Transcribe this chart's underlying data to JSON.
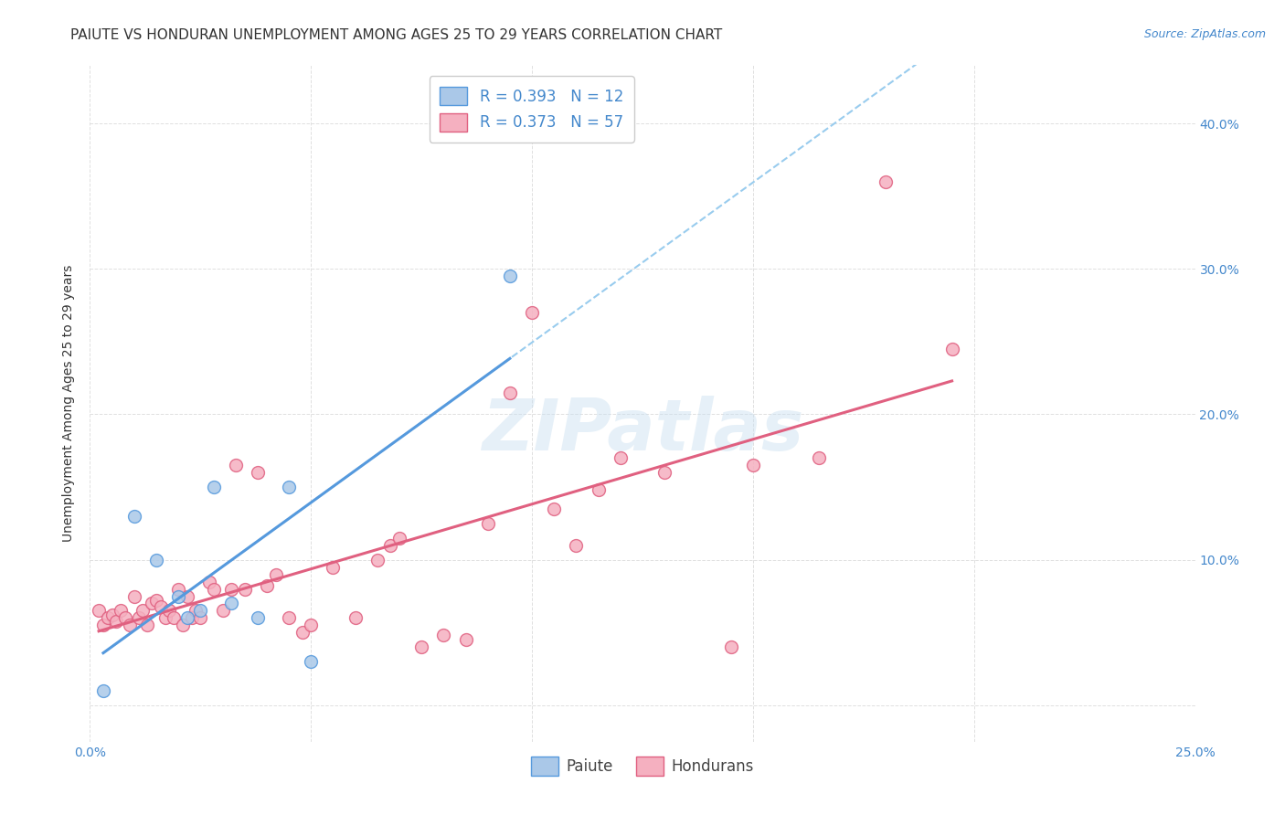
{
  "title": "PAIUTE VS HONDURAN UNEMPLOYMENT AMONG AGES 25 TO 29 YEARS CORRELATION CHART",
  "source": "Source: ZipAtlas.com",
  "ylabel": "Unemployment Among Ages 25 to 29 years",
  "xlim": [
    0.0,
    0.25
  ],
  "ylim": [
    -0.025,
    0.44
  ],
  "background_color": "#ffffff",
  "grid_color": "#e0e0e0",
  "paiute_x": [
    0.003,
    0.01,
    0.015,
    0.02,
    0.022,
    0.025,
    0.028,
    0.032,
    0.038,
    0.045,
    0.05,
    0.095
  ],
  "paiute_y": [
    0.01,
    0.13,
    0.1,
    0.075,
    0.06,
    0.065,
    0.15,
    0.07,
    0.06,
    0.15,
    0.03,
    0.295
  ],
  "honduran_x": [
    0.002,
    0.003,
    0.004,
    0.005,
    0.006,
    0.007,
    0.008,
    0.009,
    0.01,
    0.011,
    0.012,
    0.013,
    0.014,
    0.015,
    0.016,
    0.017,
    0.018,
    0.019,
    0.02,
    0.021,
    0.022,
    0.023,
    0.024,
    0.025,
    0.027,
    0.028,
    0.03,
    0.032,
    0.033,
    0.035,
    0.038,
    0.04,
    0.042,
    0.045,
    0.048,
    0.05,
    0.055,
    0.06,
    0.065,
    0.068,
    0.07,
    0.075,
    0.08,
    0.085,
    0.09,
    0.095,
    0.1,
    0.105,
    0.11,
    0.115,
    0.12,
    0.13,
    0.145,
    0.15,
    0.165,
    0.18,
    0.195
  ],
  "honduran_y": [
    0.065,
    0.055,
    0.06,
    0.062,
    0.058,
    0.065,
    0.06,
    0.055,
    0.075,
    0.06,
    0.065,
    0.055,
    0.07,
    0.072,
    0.068,
    0.06,
    0.065,
    0.06,
    0.08,
    0.055,
    0.075,
    0.06,
    0.065,
    0.06,
    0.085,
    0.08,
    0.065,
    0.08,
    0.165,
    0.08,
    0.16,
    0.082,
    0.09,
    0.06,
    0.05,
    0.055,
    0.095,
    0.06,
    0.1,
    0.11,
    0.115,
    0.04,
    0.048,
    0.045,
    0.125,
    0.215,
    0.27,
    0.135,
    0.11,
    0.148,
    0.17,
    0.16,
    0.04,
    0.165,
    0.17,
    0.36,
    0.245
  ],
  "paiute_face_color": "#aac8e8",
  "paiute_edge_color": "#5599dd",
  "honduran_face_color": "#f5b0c0",
  "honduran_edge_color": "#e06080",
  "paiute_line_color": "#5599dd",
  "honduran_line_color": "#e06080",
  "dashed_line_color": "#99ccee",
  "legend_text_color": "#4488cc",
  "tick_color": "#4488cc",
  "title_color": "#333333",
  "ylabel_color": "#333333",
  "source_color": "#4488cc",
  "legend_r_paiute": "R = 0.393",
  "legend_n_paiute": "N = 12",
  "legend_r_honduran": "R = 0.373",
  "legend_n_honduran": "N = 57",
  "paiute_label": "Paiute",
  "honduran_label": "Hondurans",
  "title_fontsize": 11,
  "axis_label_fontsize": 10,
  "tick_fontsize": 10,
  "legend_fontsize": 12
}
